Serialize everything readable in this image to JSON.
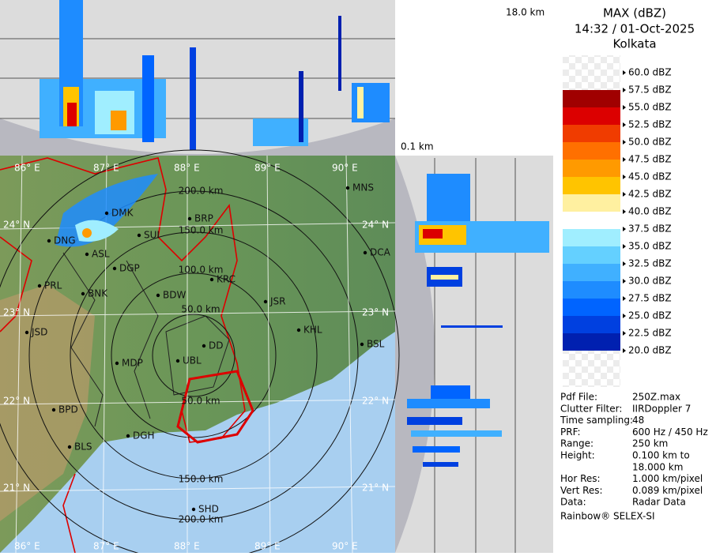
{
  "header": {
    "title": "MAX (dBZ)",
    "time": "14:32 / 01-Oct-2025",
    "station": "Kolkata"
  },
  "top_panel": {
    "max_height": "18.0 km",
    "min_height": "0.1 km"
  },
  "legend": [
    {
      "label": "60.0 dBZ",
      "color": "#ffffff"
    },
    {
      "label": "57.5 dBZ",
      "color": "#a00000"
    },
    {
      "label": "55.0 dBZ",
      "color": "#dc0000"
    },
    {
      "label": "52.5 dBZ",
      "color": "#f03c00"
    },
    {
      "label": "50.0 dBZ",
      "color": "#ff7000"
    },
    {
      "label": "47.5 dBZ",
      "color": "#ff9a00"
    },
    {
      "label": "45.0 dBZ",
      "color": "#ffc400"
    },
    {
      "label": "42.5 dBZ",
      "color": "#fff0a0"
    },
    {
      "label": "40.0 dBZ",
      "color": "#ffffff"
    },
    {
      "label": "37.5 dBZ",
      "color": "#a0eeff"
    },
    {
      "label": "35.0 dBZ",
      "color": "#64d0ff"
    },
    {
      "label": "32.5 dBZ",
      "color": "#40b0ff"
    },
    {
      "label": "30.0 dBZ",
      "color": "#1e8cff"
    },
    {
      "label": "27.5 dBZ",
      "color": "#0064ff"
    },
    {
      "label": "25.0 dBZ",
      "color": "#0040e0"
    },
    {
      "label": "22.5 dBZ",
      "color": "#0020b0"
    },
    {
      "label": "20.0 dBZ",
      "color": "#ffffff"
    }
  ],
  "info": [
    {
      "key": "Pdf File:",
      "value": [
        "250Z.max"
      ]
    },
    {
      "key": "Clutter Filter:",
      "value": [
        "IIRDoppler 7"
      ]
    },
    {
      "key": "Time sampling:",
      "value": [
        "48"
      ]
    },
    {
      "key": "PRF:",
      "value": [
        "600 Hz / 450 Hz"
      ]
    },
    {
      "key": "Range:",
      "value": [
        "250 km"
      ]
    },
    {
      "key": "Height:",
      "value": [
        "0.100 km to",
        "18.000 km"
      ]
    },
    {
      "key": "Hor Res:",
      "value": [
        "1.000 km/pixel"
      ]
    },
    {
      "key": "Vert Res:",
      "value": [
        "0.089 km/pixel"
      ]
    },
    {
      "key": "Data:",
      "value": [
        "Radar Data"
      ]
    }
  ],
  "footer": "Rainbow® SELEX-SI",
  "map": {
    "lon_labels": [
      "86° E",
      "87° E",
      "88° E",
      "89° E",
      "90° E"
    ],
    "lat_labels": [
      "24° N",
      "23° N",
      "22° N",
      "21° N"
    ],
    "range_labels": [
      "200.0 km",
      "150.0 km",
      "100.0 km",
      "50.0 km",
      "50.0 km",
      "150.0 km",
      "200.0 km"
    ],
    "stations": [
      "MNS",
      "BRP",
      "DMK",
      "SUI",
      "DNG",
      "ASL",
      "DGP",
      "KRC",
      "DCA",
      "PRL",
      "BNK",
      "BDW",
      "JSR",
      "JSD",
      "KHL",
      "DD",
      "BSL",
      "UBL",
      "MDP",
      "BPD",
      "DGH",
      "BLS",
      "SHD"
    ]
  }
}
